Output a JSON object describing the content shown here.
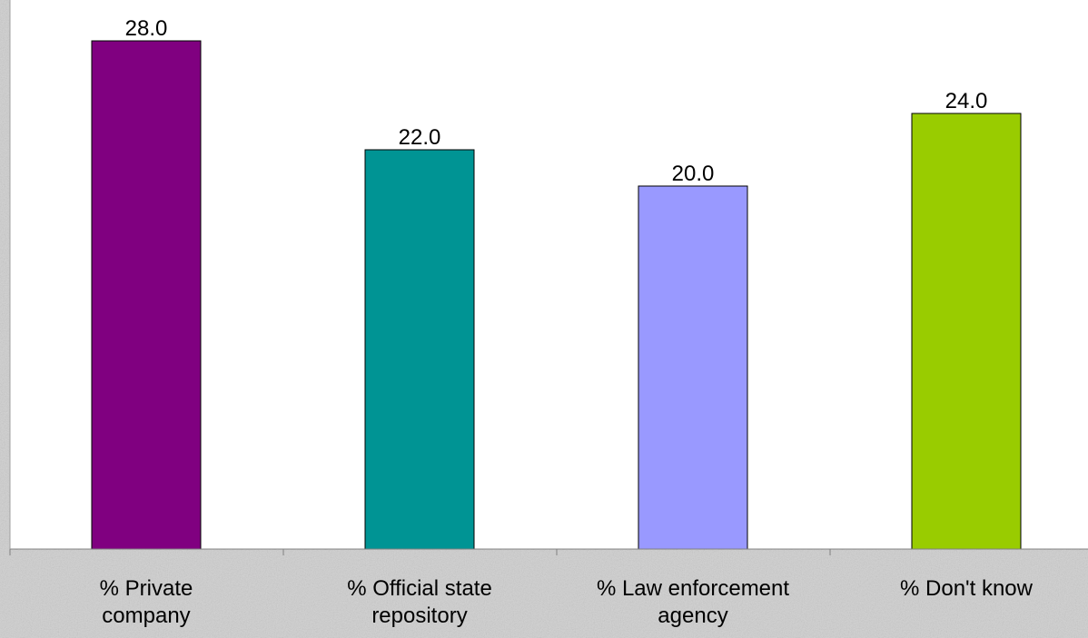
{
  "chart_data": {
    "type": "bar",
    "categories": [
      [
        "% Private",
        "company"
      ],
      [
        "% Official state",
        "repository"
      ],
      [
        "% Law enforcement",
        "agency"
      ],
      [
        "% Don't know"
      ]
    ],
    "values": [
      28.0,
      22.0,
      20.0,
      24.0
    ],
    "value_labels": [
      "28.0",
      "22.0",
      "20.0",
      "24.0"
    ],
    "bar_colors": [
      "#800080",
      "#009494",
      "#9999ff",
      "#99cc00"
    ],
    "ylim": [
      0,
      28.0
    ],
    "grid": false,
    "legend": "none",
    "title": "",
    "xlabel": "",
    "ylabel": ""
  },
  "colors": {
    "plot_background": "#ffffff",
    "page_background": "#c9c9c9",
    "axis": "#808080",
    "bar_border": "#000000"
  }
}
